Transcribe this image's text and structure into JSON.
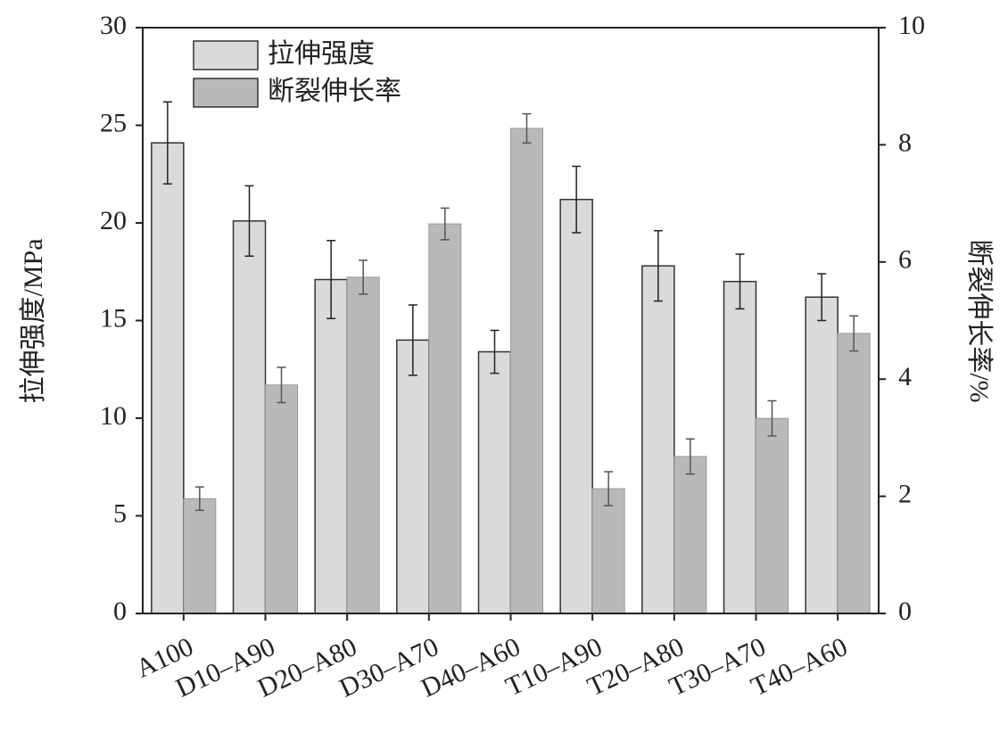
{
  "chart_data": {
    "type": "bar",
    "categories": [
      "A100",
      "D10–A90",
      "D20–A80",
      "D30–A70",
      "D40–A60",
      "T10–A90",
      "T20–A80",
      "T30–A70",
      "T40–A60"
    ],
    "series": [
      {
        "name": "拉伸强度",
        "color": "#dadada",
        "axis": "y",
        "values": [
          24.1,
          20.1,
          17.1,
          14.0,
          13.4,
          21.2,
          17.8,
          17.0,
          16.2
        ],
        "errors": [
          2.1,
          1.8,
          2.0,
          1.8,
          1.1,
          1.7,
          1.8,
          1.4,
          1.2
        ]
      },
      {
        "name": "断裂伸长率",
        "color": "#b9b9b9",
        "axis": "y2",
        "values": [
          1.96,
          3.9,
          5.74,
          6.65,
          8.28,
          2.13,
          2.68,
          3.33,
          4.78
        ],
        "errors": [
          0.2,
          0.3,
          0.29,
          0.27,
          0.25,
          0.29,
          0.3,
          0.3,
          0.3
        ]
      }
    ],
    "ylabel": "拉伸强度/MPa",
    "y2label": "断裂伸长率/%",
    "ylim": [
      0,
      30
    ],
    "yticks": [
      0,
      5,
      10,
      15,
      20,
      25,
      30
    ],
    "y2lim": [
      0,
      10
    ],
    "y2ticks": [
      0,
      2,
      4,
      6,
      8,
      10
    ],
    "legend": "upper-left"
  }
}
